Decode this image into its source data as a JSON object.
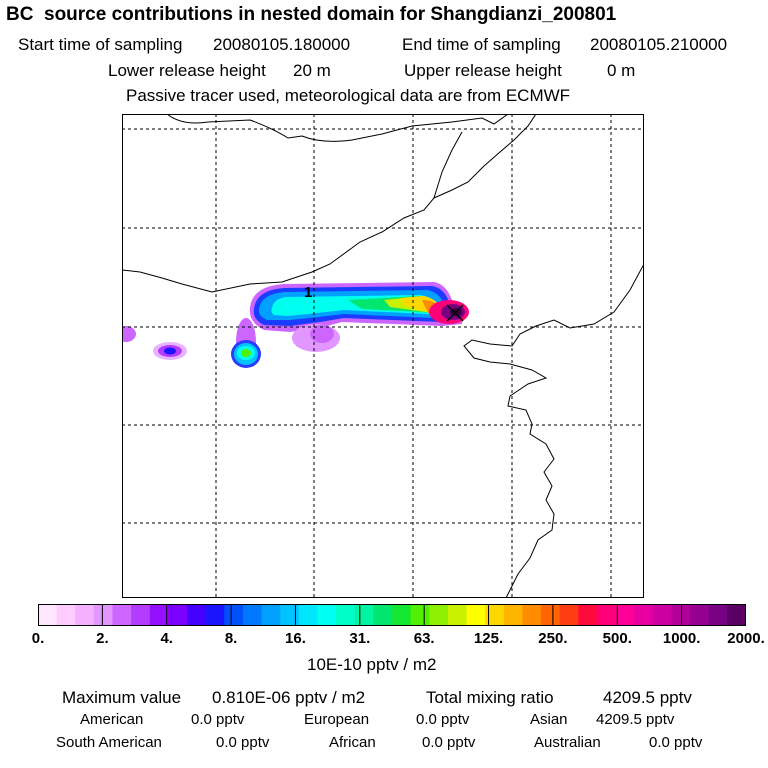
{
  "title": "BC  source contributions in nested domain for Shangdianzi_200801",
  "header": {
    "start_label": "Start time of sampling",
    "start_value": "20080105.180000",
    "end_label": "End time of sampling",
    "end_value": "20080105.210000",
    "lower_label": "Lower release height",
    "lower_value": "20 m",
    "upper_label": "Upper release height",
    "upper_value": "0 m",
    "note": "Passive tracer used, meteorological data are from ECMWF"
  },
  "map": {
    "source_marker": "1"
  },
  "colorbar": {
    "colors": [
      "#ffe6ff",
      "#ffccff",
      "#f5b0ff",
      "#e296ff",
      "#cc66ff",
      "#b23cff",
      "#9610ff",
      "#7a00ff",
      "#4600ff",
      "#1a14ff",
      "#0050ff",
      "#0078ff",
      "#00a0ff",
      "#00c4ff",
      "#00e6ff",
      "#00ffee",
      "#00ffc8",
      "#00f5a0",
      "#00e66e",
      "#14e632",
      "#50f000",
      "#8cf000",
      "#c8f000",
      "#ffff00",
      "#ffd700",
      "#ffb400",
      "#ff8c00",
      "#ff6400",
      "#ff3c14",
      "#ff0a3c",
      "#ff0078",
      "#ff0096",
      "#e600a0",
      "#cc00a0",
      "#b4009b",
      "#960091",
      "#780082",
      "#5a0064"
    ],
    "ticks": [
      "0.",
      "2.",
      "4.",
      "8.",
      "16.",
      "31.",
      "63.",
      "125.",
      "250.",
      "500.",
      "1000.",
      "2000."
    ],
    "units": "10E-10 pptv / m2"
  },
  "stats": {
    "max_label": "Maximum value",
    "max_value": "0.810E-06 pptv / m2",
    "total_label": "Total mixing ratio",
    "total_value": "4209.5 pptv",
    "regions": [
      {
        "name": "American",
        "value": "0.0 pptv"
      },
      {
        "name": "European",
        "value": "0.0 pptv"
      },
      {
        "name": "Asian",
        "value": "4209.5 pptv"
      },
      {
        "name": "South American",
        "value": "0.0 pptv"
      },
      {
        "name": "African",
        "value": "0.0 pptv"
      },
      {
        "name": "Australian",
        "value": "0.0 pptv"
      }
    ]
  }
}
